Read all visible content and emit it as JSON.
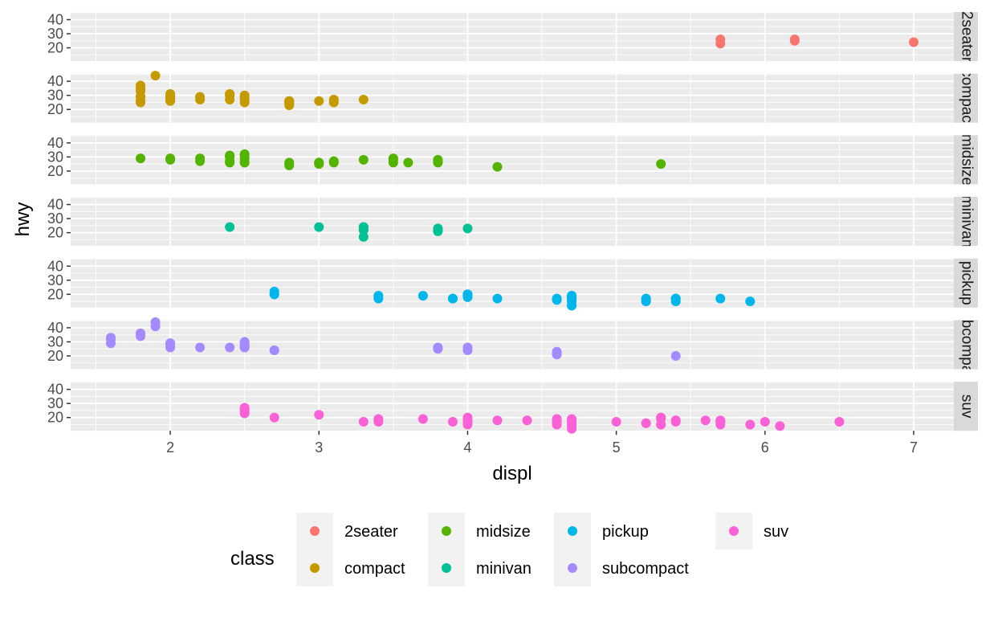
{
  "chart_data": {
    "type": "scatter",
    "xlabel": "displ",
    "ylabel": "hwy",
    "xlim": [
      1.33,
      7.27
    ],
    "ylim": [
      10.6,
      45.4
    ],
    "x_ticks": [
      2,
      3,
      4,
      5,
      6,
      7
    ],
    "y_ticks": [
      20,
      30,
      40
    ],
    "grid": true,
    "facet_strip_position": "right",
    "legend": {
      "title": "class",
      "position": "bottom"
    },
    "panels": [
      {
        "name": "2seater",
        "strip": "2seater",
        "color": "#F8766D",
        "points": [
          [
            5.7,
            26
          ],
          [
            5.7,
            23
          ],
          [
            6.2,
            26
          ],
          [
            6.2,
            25
          ],
          [
            7.0,
            24
          ]
        ]
      },
      {
        "name": "compact",
        "strip": "compact",
        "color": "#C49A00",
        "points": [
          [
            1.8,
            29
          ],
          [
            1.8,
            29
          ],
          [
            2.0,
            31
          ],
          [
            2.0,
            30
          ],
          [
            2.8,
            26
          ],
          [
            2.8,
            26
          ],
          [
            3.1,
            27
          ],
          [
            1.8,
            26
          ],
          [
            1.8,
            25
          ],
          [
            2.0,
            28
          ],
          [
            2.0,
            27
          ],
          [
            2.8,
            25
          ],
          [
            2.8,
            25
          ],
          [
            3.1,
            25
          ],
          [
            2.2,
            27
          ],
          [
            2.2,
            29
          ],
          [
            2.4,
            31
          ],
          [
            2.4,
            31
          ],
          [
            3.0,
            26
          ],
          [
            3.3,
            27
          ],
          [
            1.8,
            33
          ],
          [
            1.8,
            35
          ],
          [
            1.8,
            37
          ],
          [
            1.8,
            35
          ],
          [
            2.0,
            29
          ],
          [
            2.0,
            26
          ],
          [
            2.0,
            29
          ],
          [
            2.0,
            28
          ],
          [
            2.0,
            29
          ],
          [
            2.8,
            24
          ],
          [
            1.9,
            44
          ],
          [
            2.0,
            29
          ],
          [
            2.5,
            25
          ],
          [
            2.5,
            27
          ],
          [
            2.5,
            30
          ],
          [
            2.5,
            29
          ],
          [
            2.4,
            27
          ],
          [
            2.4,
            30
          ],
          [
            2.8,
            23
          ]
        ]
      },
      {
        "name": "midsize",
        "strip": "midsize",
        "color": "#53B400",
        "points": [
          [
            2.8,
            26
          ],
          [
            2.8,
            25
          ],
          [
            3.1,
            26
          ],
          [
            2.4,
            30
          ],
          [
            2.4,
            27
          ],
          [
            3.1,
            27
          ],
          [
            3.5,
            26
          ],
          [
            3.5,
            29
          ],
          [
            3.8,
            26
          ],
          [
            3.8,
            28
          ],
          [
            3.8,
            27
          ],
          [
            5.3,
            25
          ],
          [
            2.5,
            29
          ],
          [
            2.5,
            32
          ],
          [
            2.2,
            27
          ],
          [
            2.2,
            29
          ],
          [
            2.4,
            31
          ],
          [
            2.4,
            31
          ],
          [
            3.0,
            26
          ],
          [
            3.0,
            26
          ],
          [
            3.5,
            28
          ],
          [
            2.5,
            26
          ],
          [
            2.5,
            26
          ],
          [
            2.5,
            31
          ],
          [
            3.3,
            28
          ],
          [
            3.6,
            26
          ],
          [
            1.8,
            29
          ],
          [
            2.0,
            28
          ],
          [
            2.0,
            29
          ],
          [
            2.8,
            24
          ],
          [
            4.2,
            23
          ],
          [
            2.4,
            26
          ],
          [
            3.0,
            25
          ]
        ]
      },
      {
        "name": "minivan",
        "strip": "minivan",
        "color": "#00C094",
        "points": [
          [
            2.4,
            24
          ],
          [
            3.0,
            24
          ],
          [
            3.3,
            22
          ],
          [
            3.3,
            22
          ],
          [
            3.3,
            24
          ],
          [
            3.3,
            24
          ],
          [
            3.3,
            17
          ],
          [
            3.8,
            22
          ],
          [
            3.8,
            21
          ],
          [
            3.8,
            23
          ],
          [
            4.0,
            23
          ]
        ]
      },
      {
        "name": "pickup",
        "strip": "pickup",
        "color": "#00B6EB",
        "points": [
          [
            3.7,
            19
          ],
          [
            3.9,
            17
          ],
          [
            4.7,
            17
          ],
          [
            4.7,
            17
          ],
          [
            4.7,
            15
          ],
          [
            5.2,
            15
          ],
          [
            5.2,
            16
          ],
          [
            3.9,
            17
          ],
          [
            4.7,
            19
          ],
          [
            4.7,
            19
          ],
          [
            5.2,
            17
          ],
          [
            5.7,
            17
          ],
          [
            5.9,
            15
          ],
          [
            4.7,
            12
          ],
          [
            4.7,
            17
          ],
          [
            4.7,
            17
          ],
          [
            4.6,
            16
          ],
          [
            4.6,
            17
          ],
          [
            5.4,
            15
          ],
          [
            5.4,
            17
          ],
          [
            2.7,
            20
          ],
          [
            2.7,
            20
          ],
          [
            2.7,
            22
          ],
          [
            3.4,
            17
          ],
          [
            3.4,
            19
          ],
          [
            4.0,
            18
          ],
          [
            4.0,
            20
          ],
          [
            4.2,
            17
          ],
          [
            4.0,
            19
          ],
          [
            4.0,
            20
          ],
          [
            4.7,
            12
          ],
          [
            4.7,
            17
          ],
          [
            5.4,
            17
          ]
        ]
      },
      {
        "name": "subcompact",
        "strip": "subcompact",
        "color": "#A58AFF",
        "points": [
          [
            3.8,
            26
          ],
          [
            3.8,
            25
          ],
          [
            4.0,
            26
          ],
          [
            4.0,
            24
          ],
          [
            4.6,
            21
          ],
          [
            4.6,
            22
          ],
          [
            4.6,
            23
          ],
          [
            4.6,
            22
          ],
          [
            5.4,
            20
          ],
          [
            1.6,
            33
          ],
          [
            1.6,
            32
          ],
          [
            1.6,
            32
          ],
          [
            1.6,
            29
          ],
          [
            1.6,
            32
          ],
          [
            1.8,
            34
          ],
          [
            1.8,
            36
          ],
          [
            1.8,
            36
          ],
          [
            2.0,
            29
          ],
          [
            2.4,
            26
          ],
          [
            2.5,
            27
          ],
          [
            2.5,
            30
          ],
          [
            2.5,
            26
          ],
          [
            2.5,
            29
          ],
          [
            2.7,
            24
          ],
          [
            2.7,
            24
          ],
          [
            1.9,
            44
          ],
          [
            1.9,
            41
          ],
          [
            2.0,
            29
          ],
          [
            2.0,
            26
          ],
          [
            2.0,
            28
          ],
          [
            2.2,
            26
          ],
          [
            2.5,
            26
          ],
          [
            2.5,
            28
          ]
        ]
      },
      {
        "name": "suv",
        "strip": "suv",
        "color": "#FB61D7",
        "points": [
          [
            5.7,
            17
          ],
          [
            5.3,
            20
          ],
          [
            5.3,
            15
          ],
          [
            5.3,
            20
          ],
          [
            5.7,
            17
          ],
          [
            6.0,
            17
          ],
          [
            5.7,
            15
          ],
          [
            6.5,
            17
          ],
          [
            4.7,
            17
          ],
          [
            4.7,
            17
          ],
          [
            5.2,
            16
          ],
          [
            5.7,
            18
          ],
          [
            5.9,
            15
          ],
          [
            4.0,
            17
          ],
          [
            4.0,
            17
          ],
          [
            4.6,
            17
          ],
          [
            5.0,
            17
          ],
          [
            4.6,
            17
          ],
          [
            5.4,
            17
          ],
          [
            2.5,
            26
          ],
          [
            2.5,
            23
          ],
          [
            3.3,
            17
          ],
          [
            3.4,
            17
          ],
          [
            4.0,
            20
          ],
          [
            4.0,
            15
          ],
          [
            4.0,
            18
          ],
          [
            4.2,
            18
          ],
          [
            4.4,
            18
          ],
          [
            4.6,
            19
          ],
          [
            5.3,
            15
          ],
          [
            5.4,
            18
          ],
          [
            6.1,
            14
          ],
          [
            3.7,
            19
          ],
          [
            4.0,
            17
          ],
          [
            4.7,
            14
          ],
          [
            4.7,
            19
          ],
          [
            5.7,
            17
          ],
          [
            2.5,
            27
          ],
          [
            2.5,
            25
          ],
          [
            2.7,
            20
          ],
          [
            3.0,
            22
          ],
          [
            3.4,
            19
          ],
          [
            4.0,
            18
          ],
          [
            4.0,
            17
          ],
          [
            4.7,
            12
          ],
          [
            4.7,
            15
          ],
          [
            5.4,
            18
          ],
          [
            5.6,
            18
          ],
          [
            4.6,
            19
          ],
          [
            3.9,
            17
          ],
          [
            5.2,
            16
          ],
          [
            5.3,
            19
          ],
          [
            4.6,
            15
          ]
        ]
      }
    ]
  }
}
